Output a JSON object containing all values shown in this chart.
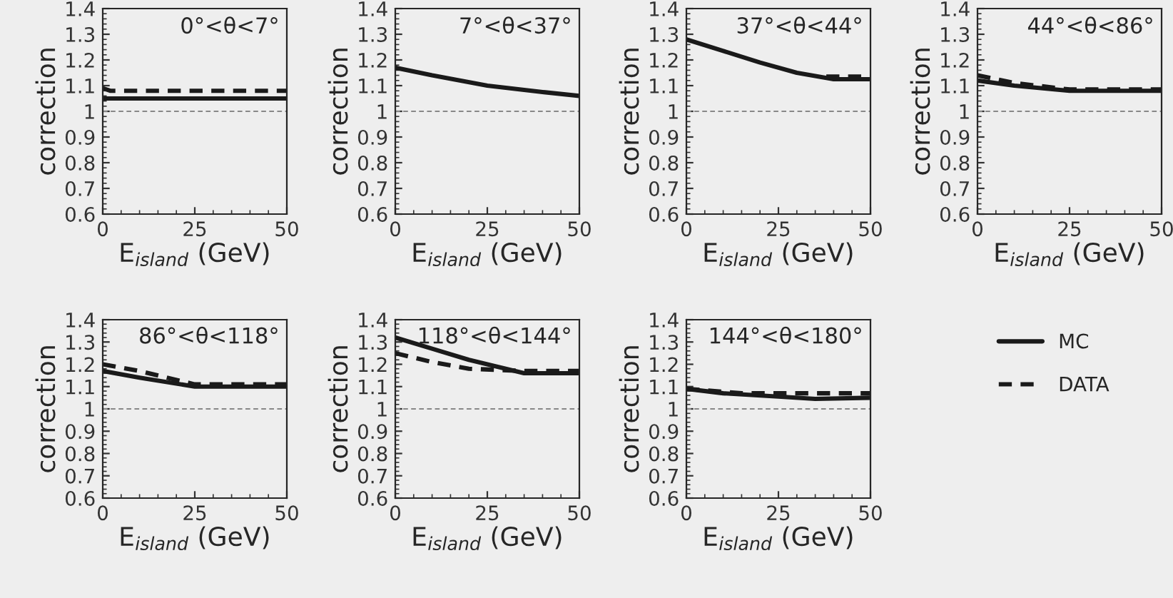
{
  "chart_data": [
    {
      "type": "line",
      "annotations": [
        "0°<θ<7°"
      ],
      "xlabel": "E$_{island}$ (GeV)",
      "ylabel": "correction",
      "xlim": [
        0,
        50
      ],
      "xticks": [
        0,
        25,
        50
      ],
      "ylim": [
        0.6,
        1.4
      ],
      "yticks": [
        0.6,
        0.7,
        0.8,
        0.9,
        1,
        1.1,
        1.2,
        1.3,
        1.4
      ],
      "grid": false,
      "ref_lines": [
        {
          "axis": "y",
          "value": 1.0,
          "color": "#888888",
          "line_style": "dashed"
        }
      ],
      "series": [
        {
          "color": "#1a1a1a",
          "line_style": "solid",
          "x": [
            0,
            50
          ],
          "values": [
            1.05,
            1.05
          ]
        },
        {
          "color": "#1a1a1a",
          "line_style": "dashed",
          "x": [
            0,
            2,
            50
          ],
          "values": [
            1.09,
            1.08,
            1.08
          ]
        }
      ]
    },
    {
      "type": "line",
      "annotations": [
        "7°<θ<37°"
      ],
      "xlabel": "E$_{island}$ (GeV)",
      "ylabel": "correction",
      "xlim": [
        0,
        50
      ],
      "xticks": [
        0,
        25,
        50
      ],
      "ylim": [
        0.6,
        1.4
      ],
      "yticks": [
        0.6,
        0.7,
        0.8,
        0.9,
        1,
        1.1,
        1.2,
        1.3,
        1.4
      ],
      "grid": false,
      "ref_lines": [
        {
          "axis": "y",
          "value": 1.0,
          "color": "#888888",
          "line_style": "dashed"
        }
      ],
      "series": [
        {
          "color": "#1a1a1a",
          "line_style": "solid",
          "x": [
            0,
            10,
            25,
            40,
            50
          ],
          "values": [
            1.17,
            1.14,
            1.1,
            1.075,
            1.06
          ]
        }
      ]
    },
    {
      "type": "line",
      "annotations": [
        "37°<θ<44°"
      ],
      "xlabel": "E$_{island}$ (GeV)",
      "ylabel": "correction",
      "xlim": [
        0,
        50
      ],
      "xticks": [
        0,
        25,
        50
      ],
      "ylim": [
        0.6,
        1.4
      ],
      "yticks": [
        0.6,
        0.7,
        0.8,
        0.9,
        1,
        1.1,
        1.2,
        1.3,
        1.4
      ],
      "grid": false,
      "ref_lines": [
        {
          "axis": "y",
          "value": 1.0,
          "color": "#888888",
          "line_style": "dashed"
        }
      ],
      "series": [
        {
          "color": "#1a1a1a",
          "line_style": "solid",
          "x": [
            0,
            10,
            20,
            30,
            40,
            50
          ],
          "values": [
            1.28,
            1.235,
            1.19,
            1.15,
            1.125,
            1.125
          ]
        },
        {
          "color": "#1a1a1a",
          "line_style": "dashed",
          "x": [
            38,
            50
          ],
          "values": [
            1.135,
            1.135
          ]
        }
      ]
    },
    {
      "type": "line",
      "annotations": [
        "44°<θ<86°"
      ],
      "xlabel": "E$_{island}$ (GeV)",
      "ylabel": "correction",
      "xlim": [
        0,
        50
      ],
      "xticks": [
        0,
        25,
        50
      ],
      "ylim": [
        0.6,
        1.4
      ],
      "yticks": [
        0.6,
        0.7,
        0.8,
        0.9,
        1,
        1.1,
        1.2,
        1.3,
        1.4
      ],
      "grid": false,
      "ref_lines": [
        {
          "axis": "y",
          "value": 1.0,
          "color": "#888888",
          "line_style": "dashed"
        }
      ],
      "series": [
        {
          "color": "#1a1a1a",
          "line_style": "solid",
          "x": [
            0,
            10,
            25,
            50
          ],
          "values": [
            1.12,
            1.1,
            1.08,
            1.08
          ]
        },
        {
          "color": "#1a1a1a",
          "line_style": "dashed",
          "x": [
            0,
            10,
            25,
            50
          ],
          "values": [
            1.14,
            1.11,
            1.085,
            1.085
          ]
        }
      ]
    },
    {
      "type": "line",
      "annotations": [
        "86°<θ<118°"
      ],
      "xlabel": "E$_{island}$ (GeV)",
      "ylabel": "correction",
      "xlim": [
        0,
        50
      ],
      "xticks": [
        0,
        25,
        50
      ],
      "ylim": [
        0.6,
        1.4
      ],
      "yticks": [
        0.6,
        0.7,
        0.8,
        0.9,
        1,
        1.1,
        1.2,
        1.3,
        1.4
      ],
      "grid": false,
      "ref_lines": [
        {
          "axis": "y",
          "value": 1.0,
          "color": "#888888",
          "line_style": "dashed"
        }
      ],
      "series": [
        {
          "color": "#1a1a1a",
          "line_style": "solid",
          "x": [
            0,
            10,
            25,
            50
          ],
          "values": [
            1.17,
            1.14,
            1.1,
            1.1
          ]
        },
        {
          "color": "#1a1a1a",
          "line_style": "dashed",
          "x": [
            0,
            10,
            25,
            50
          ],
          "values": [
            1.2,
            1.17,
            1.11,
            1.11
          ]
        }
      ]
    },
    {
      "type": "line",
      "annotations": [
        "118°<θ<144°"
      ],
      "xlabel": "E$_{island}$ (GeV)",
      "ylabel": "correction",
      "xlim": [
        0,
        50
      ],
      "xticks": [
        0,
        25,
        50
      ],
      "ylim": [
        0.6,
        1.4
      ],
      "yticks": [
        0.6,
        0.7,
        0.8,
        0.9,
        1,
        1.1,
        1.2,
        1.3,
        1.4
      ],
      "grid": false,
      "ref_lines": [
        {
          "axis": "y",
          "value": 1.0,
          "color": "#888888",
          "line_style": "dashed"
        }
      ],
      "series": [
        {
          "color": "#1a1a1a",
          "line_style": "solid",
          "x": [
            0,
            10,
            20,
            35,
            50
          ],
          "values": [
            1.32,
            1.27,
            1.22,
            1.16,
            1.16
          ]
        },
        {
          "color": "#1a1a1a",
          "line_style": "dashed",
          "x": [
            0,
            10,
            20,
            35,
            50
          ],
          "values": [
            1.25,
            1.21,
            1.18,
            1.17,
            1.17
          ]
        }
      ]
    },
    {
      "type": "line",
      "annotations": [
        "144°<θ<180°"
      ],
      "xlabel": "E$_{island}$ (GeV)",
      "ylabel": "correction",
      "xlim": [
        0,
        50
      ],
      "xticks": [
        0,
        25,
        50
      ],
      "ylim": [
        0.6,
        1.4
      ],
      "yticks": [
        0.6,
        0.7,
        0.8,
        0.9,
        1,
        1.1,
        1.2,
        1.3,
        1.4
      ],
      "grid": false,
      "legend": "right",
      "ref_lines": [
        {
          "axis": "y",
          "value": 1.0,
          "color": "#888888",
          "line_style": "dashed"
        }
      ],
      "series": [
        {
          "name": "MC",
          "color": "#1a1a1a",
          "line_style": "solid",
          "x": [
            0,
            10,
            25,
            35,
            50
          ],
          "values": [
            1.09,
            1.07,
            1.055,
            1.045,
            1.05
          ]
        },
        {
          "name": "DATA",
          "color": "#1a1a1a",
          "line_style": "dashed",
          "x": [
            0,
            15,
            50
          ],
          "values": [
            1.09,
            1.07,
            1.07
          ]
        }
      ]
    }
  ]
}
